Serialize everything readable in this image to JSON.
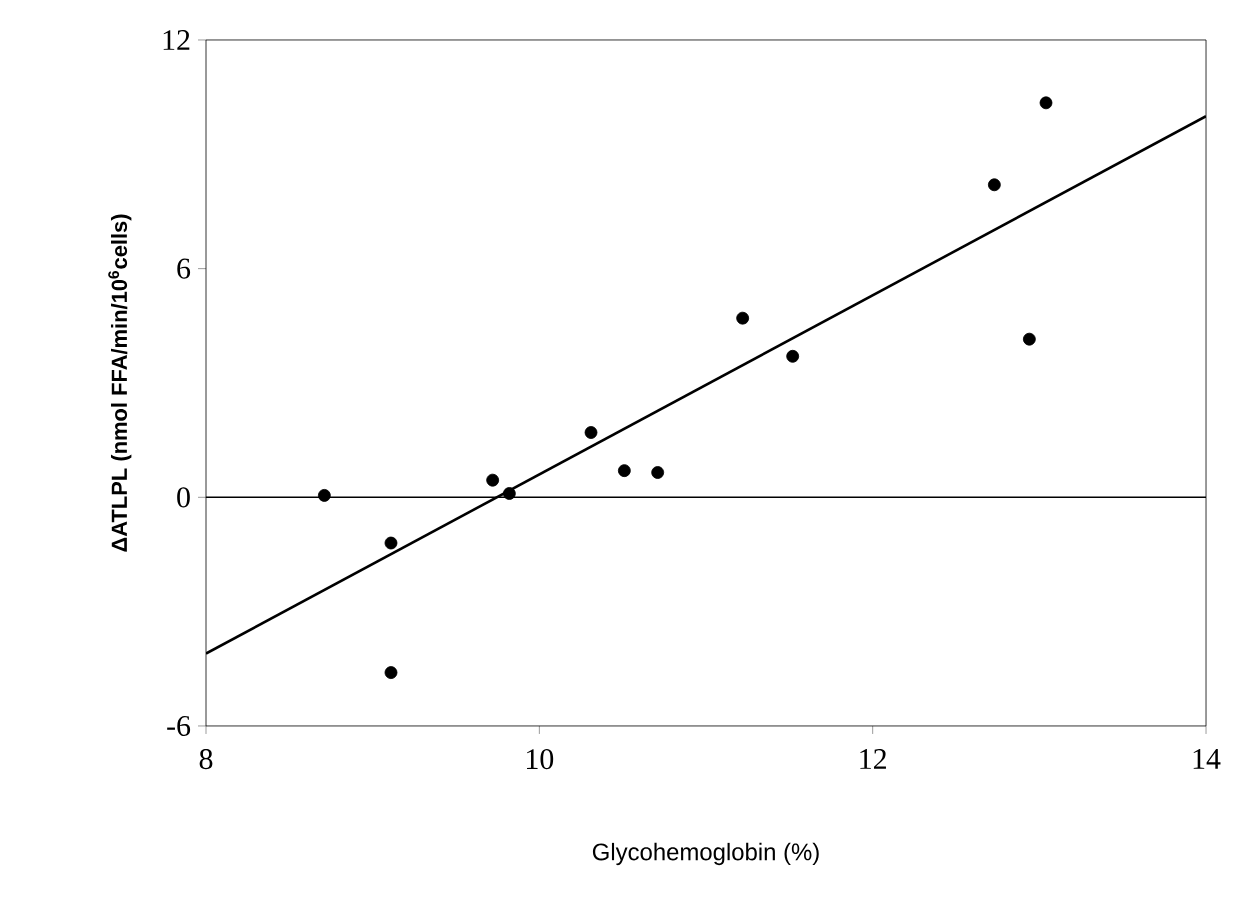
{
  "chart_data": {
    "type": "scatter",
    "xlabel": "Glycohemoglobin (%)",
    "ylabel": "ΔATLPL (nmol FFA/min/10$^{6}$cells)",
    "xlim": [
      8,
      14
    ],
    "ylim": [
      -6,
      12
    ],
    "xticks": [
      8,
      10,
      12,
      14
    ],
    "yticks": [
      -6,
      0,
      6,
      12
    ],
    "grid": false,
    "ref_lines": [
      {
        "axis": "y",
        "value": 0,
        "color": "#000000"
      }
    ],
    "series": [
      {
        "color": "#000000",
        "marker": "circle",
        "x": [
          8.71,
          9.11,
          9.11,
          9.72,
          9.82,
          10.31,
          10.51,
          10.71,
          11.22,
          11.52,
          12.73,
          12.94,
          13.04
        ],
        "values": [
          0.05,
          -1.2,
          -4.6,
          0.45,
          0.1,
          1.7,
          0.7,
          0.65,
          4.7,
          3.7,
          8.2,
          4.15,
          10.35
        ]
      },
      {
        "type": "line",
        "color": "#000000",
        "x": [
          8,
          14
        ],
        "values": [
          -4.1,
          10.0
        ],
        "marker": "none",
        "line_style": "solid"
      }
    ]
  }
}
